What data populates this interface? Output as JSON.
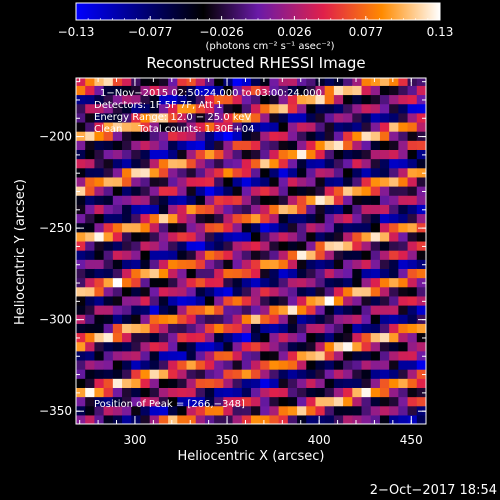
{
  "chart_data": {
    "type": "heatmap",
    "title": "Reconstructed RHESSI Image",
    "xlabel": "Heliocentric X (arcsec)",
    "ylabel": "Heliocentric Y (arcsec)",
    "xlim": [
      268,
      458
    ],
    "ylim": [
      -357,
      -168
    ],
    "x_ticks": [
      300,
      350,
      400,
      450
    ],
    "y_ticks": [
      -200,
      -250,
      -300,
      -350
    ],
    "x_tick_labels": [
      "300",
      "350",
      "400",
      "450"
    ],
    "y_tick_labels": [
      "−200",
      "−250",
      "−300",
      "−350"
    ],
    "colorbar": {
      "range": [
        -0.13,
        0.13
      ],
      "ticks": [
        -0.13,
        -0.077,
        -0.026,
        0.026,
        0.077,
        0.13
      ],
      "tick_labels": [
        "−0.13",
        "−0.077",
        "−0.026",
        "0.026",
        "0.077",
        "0.13"
      ],
      "unit_label": "(photons cm⁻² s⁻¹ asec⁻²)",
      "colormap": [
        "#0000ff",
        "#000000",
        "#6a1aa8",
        "#e0204a",
        "#ff8a00",
        "#ffffff"
      ]
    },
    "grid": false,
    "annotations": [
      "1−Nov−2015 02:50:24.000 to 03:00:24.000",
      "Detectors: 1F 5F 7F, Att 1",
      "Energy Range: 12.0 − 25.0 keV",
      "Clean     Total counts: 1.30E+04",
      "Position of Peak = [266,−348]"
    ],
    "peak_position": [
      266,
      -348
    ],
    "pattern": {
      "description_values": "striped interference pattern, pixel size 5 arcsec",
      "pixel_size_arcsec": 5,
      "stripe_slope": 0.28,
      "stripe_period_arcsec": 14
    }
  },
  "footer": {
    "date": "2−Oct−2017 18:54"
  }
}
